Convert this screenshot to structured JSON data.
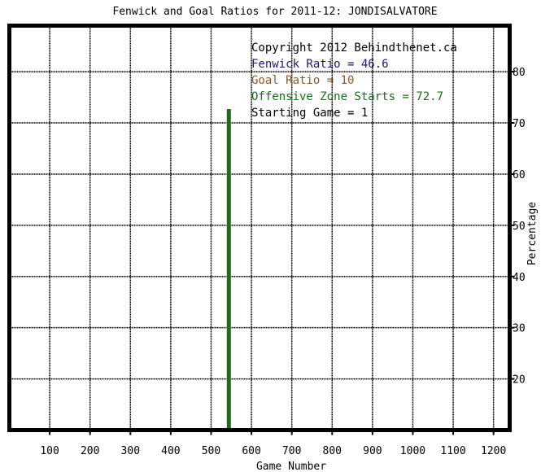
{
  "chart_data": {
    "type": "line",
    "title": "Fenwick and Goal Ratios for 2011-12: JONDISALVATORE",
    "xlabel": "Game Number",
    "ylabel": "Percentage",
    "xlim": [
      0,
      1240
    ],
    "ylim": [
      10,
      89
    ],
    "x_ticks": [
      100,
      200,
      300,
      400,
      500,
      600,
      700,
      800,
      900,
      1000,
      1100,
      1200
    ],
    "y_ticks": [
      20,
      30,
      40,
      50,
      60,
      70,
      80
    ],
    "grid": true,
    "annotations": [
      {
        "text": "Copyright 2012 Behindthenet.ca",
        "color": "#000000"
      },
      {
        "text": "Fenwick Ratio = 46.6",
        "color": "#1a1a6e"
      },
      {
        "text": "Goal Ratio = 10",
        "color": "#8b5a2b"
      },
      {
        "text": "Offensive Zone Starts = 72.7",
        "color": "#1e6b1e"
      },
      {
        "text": "Starting Game = 1",
        "color": "#000000"
      }
    ],
    "series": [
      {
        "color": "#1e6b1e",
        "x": [
          544,
          544
        ],
        "y": [
          10,
          72.7
        ]
      }
    ]
  }
}
